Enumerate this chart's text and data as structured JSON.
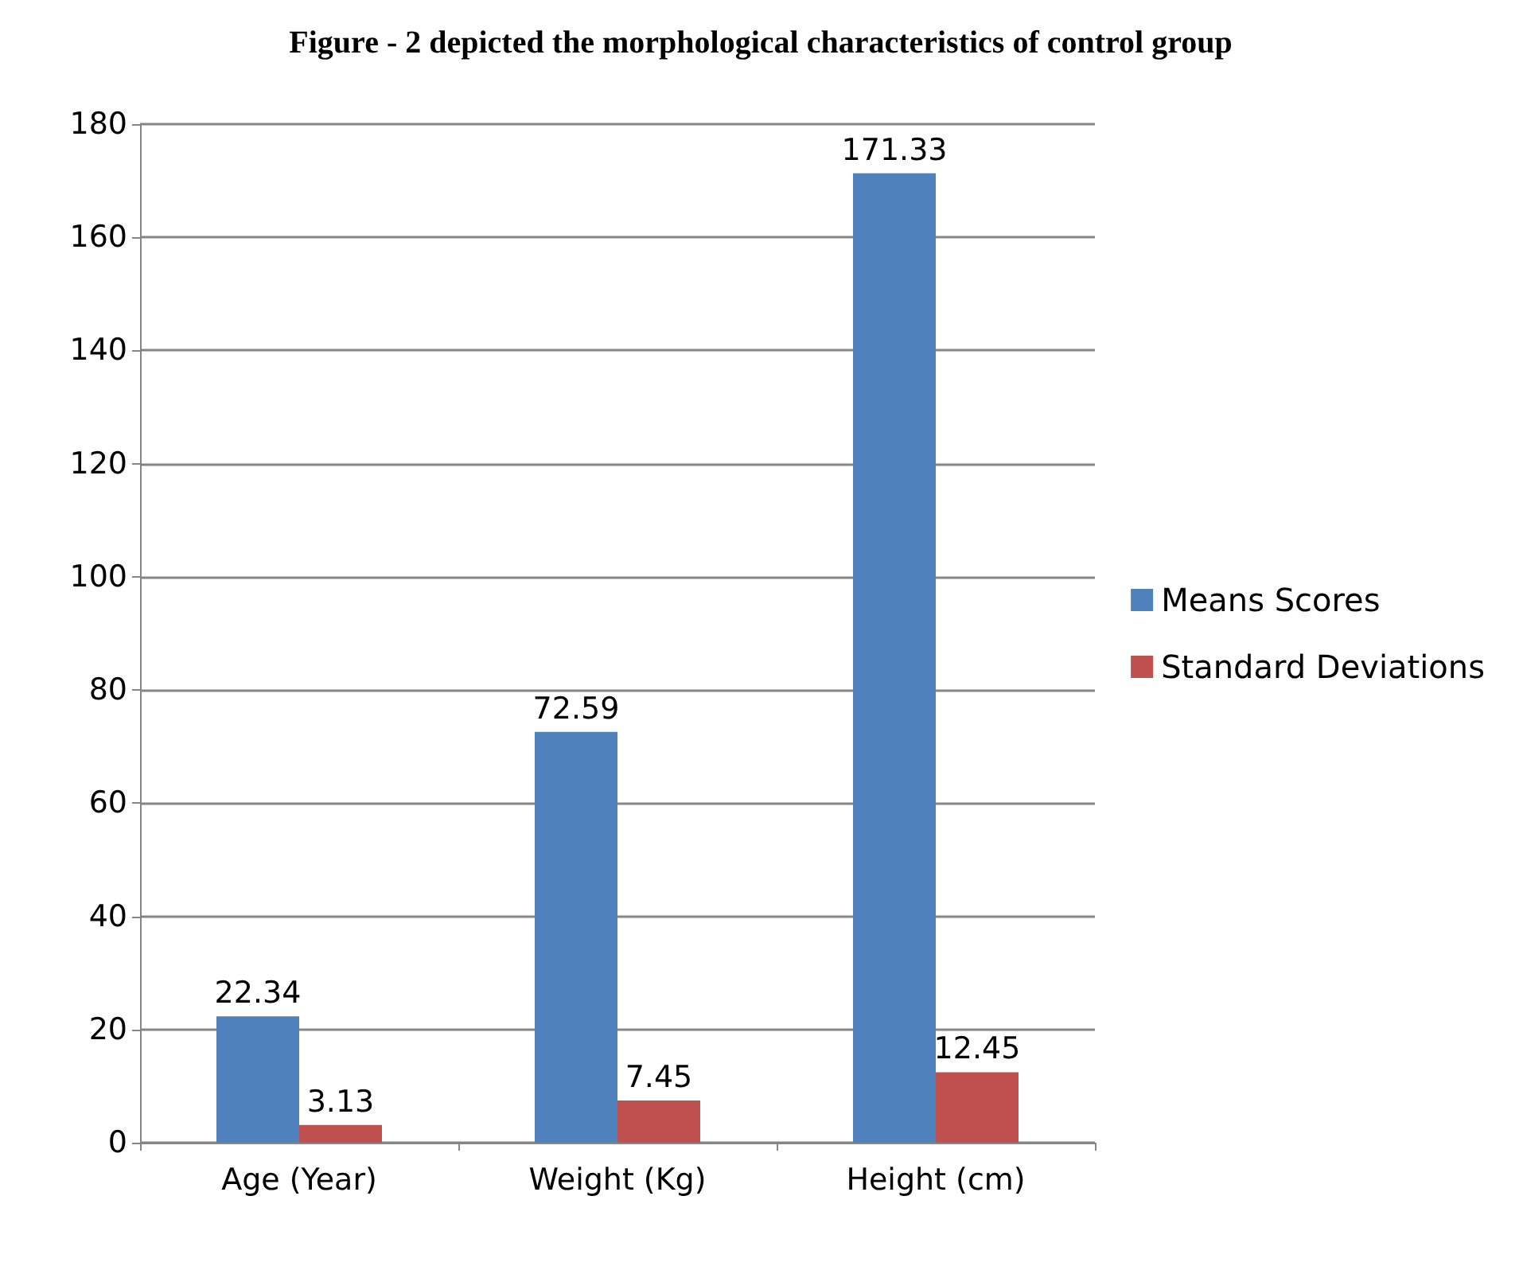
{
  "chart_data": {
    "type": "bar",
    "title": "Figure - 2 depicted the morphological characteristics of control group",
    "categories": [
      "Age (Year)",
      "Weight (Kg)",
      "Height (cm)"
    ],
    "series": [
      {
        "name": "Means Scores",
        "color": "#4f81bd",
        "values": [
          22.34,
          72.59,
          171.33
        ]
      },
      {
        "name": "Standard Deviations",
        "color": "#c0504d",
        "values": [
          3.13,
          7.45,
          12.45
        ]
      }
    ],
    "ylim": [
      0,
      180
    ],
    "yticks": [
      0,
      20,
      40,
      60,
      80,
      100,
      120,
      140,
      160,
      180
    ],
    "grid": "y",
    "legend": "right",
    "data_labels": true
  }
}
